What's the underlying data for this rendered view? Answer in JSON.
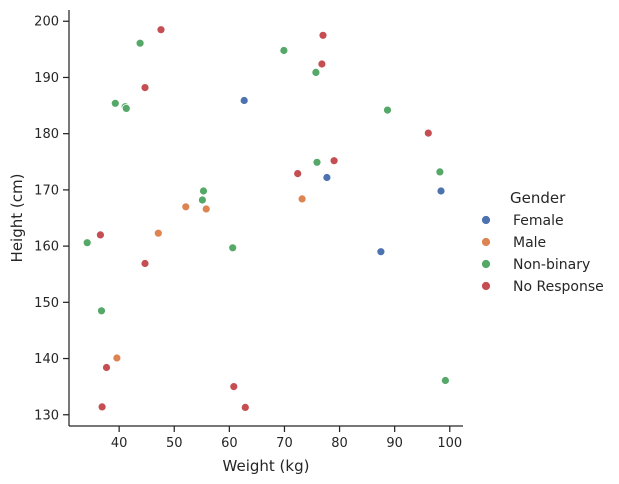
{
  "chart_data": {
    "type": "scatter",
    "title": "",
    "xlabel": "Weight (kg)",
    "ylabel": "Height (cm)",
    "xlim": [
      30.9,
      102.4
    ],
    "ylim": [
      128.0,
      202.0
    ],
    "xticks": [
      40,
      50,
      60,
      70,
      80,
      90,
      100
    ],
    "yticks": [
      130,
      140,
      150,
      160,
      170,
      180,
      190,
      200
    ],
    "grid": false,
    "legend": {
      "title": "Gender",
      "placement": "right"
    },
    "series": [
      {
        "name": "Female",
        "color": "#4c72b0",
        "points": [
          {
            "x": 62.7,
            "y": 185.9
          },
          {
            "x": 77.7,
            "y": 172.2
          },
          {
            "x": 87.5,
            "y": 159.0
          },
          {
            "x": 98.4,
            "y": 169.8
          }
        ]
      },
      {
        "name": "Male",
        "color": "#dd8452",
        "points": [
          {
            "x": 52.1,
            "y": 167.0
          },
          {
            "x": 55.8,
            "y": 166.6
          },
          {
            "x": 47.1,
            "y": 162.3
          },
          {
            "x": 73.2,
            "y": 168.4
          },
          {
            "x": 39.6,
            "y": 140.1
          }
        ]
      },
      {
        "name": "Non-binary",
        "color": "#55a868",
        "points": [
          {
            "x": 43.8,
            "y": 196.1
          },
          {
            "x": 69.9,
            "y": 194.8
          },
          {
            "x": 75.7,
            "y": 190.9
          },
          {
            "x": 39.3,
            "y": 185.4
          },
          {
            "x": 41.1,
            "y": 184.8
          },
          {
            "x": 41.3,
            "y": 184.5
          },
          {
            "x": 88.7,
            "y": 184.2
          },
          {
            "x": 75.9,
            "y": 174.9
          },
          {
            "x": 98.2,
            "y": 173.2
          },
          {
            "x": 55.3,
            "y": 169.8
          },
          {
            "x": 55.1,
            "y": 168.2
          },
          {
            "x": 60.6,
            "y": 159.7
          },
          {
            "x": 34.2,
            "y": 160.6
          },
          {
            "x": 36.8,
            "y": 148.5
          },
          {
            "x": 99.2,
            "y": 136.1
          }
        ]
      },
      {
        "name": "No Response",
        "color": "#c44e52",
        "points": [
          {
            "x": 47.6,
            "y": 198.5
          },
          {
            "x": 77.0,
            "y": 197.5
          },
          {
            "x": 76.8,
            "y": 192.4
          },
          {
            "x": 44.7,
            "y": 188.2
          },
          {
            "x": 96.1,
            "y": 180.1
          },
          {
            "x": 79.0,
            "y": 175.2
          },
          {
            "x": 72.4,
            "y": 172.9
          },
          {
            "x": 36.6,
            "y": 162.0
          },
          {
            "x": 44.7,
            "y": 156.9
          },
          {
            "x": 37.7,
            "y": 138.4
          },
          {
            "x": 60.8,
            "y": 135.0
          },
          {
            "x": 36.9,
            "y": 131.4
          },
          {
            "x": 62.9,
            "y": 131.3
          }
        ]
      }
    ]
  }
}
